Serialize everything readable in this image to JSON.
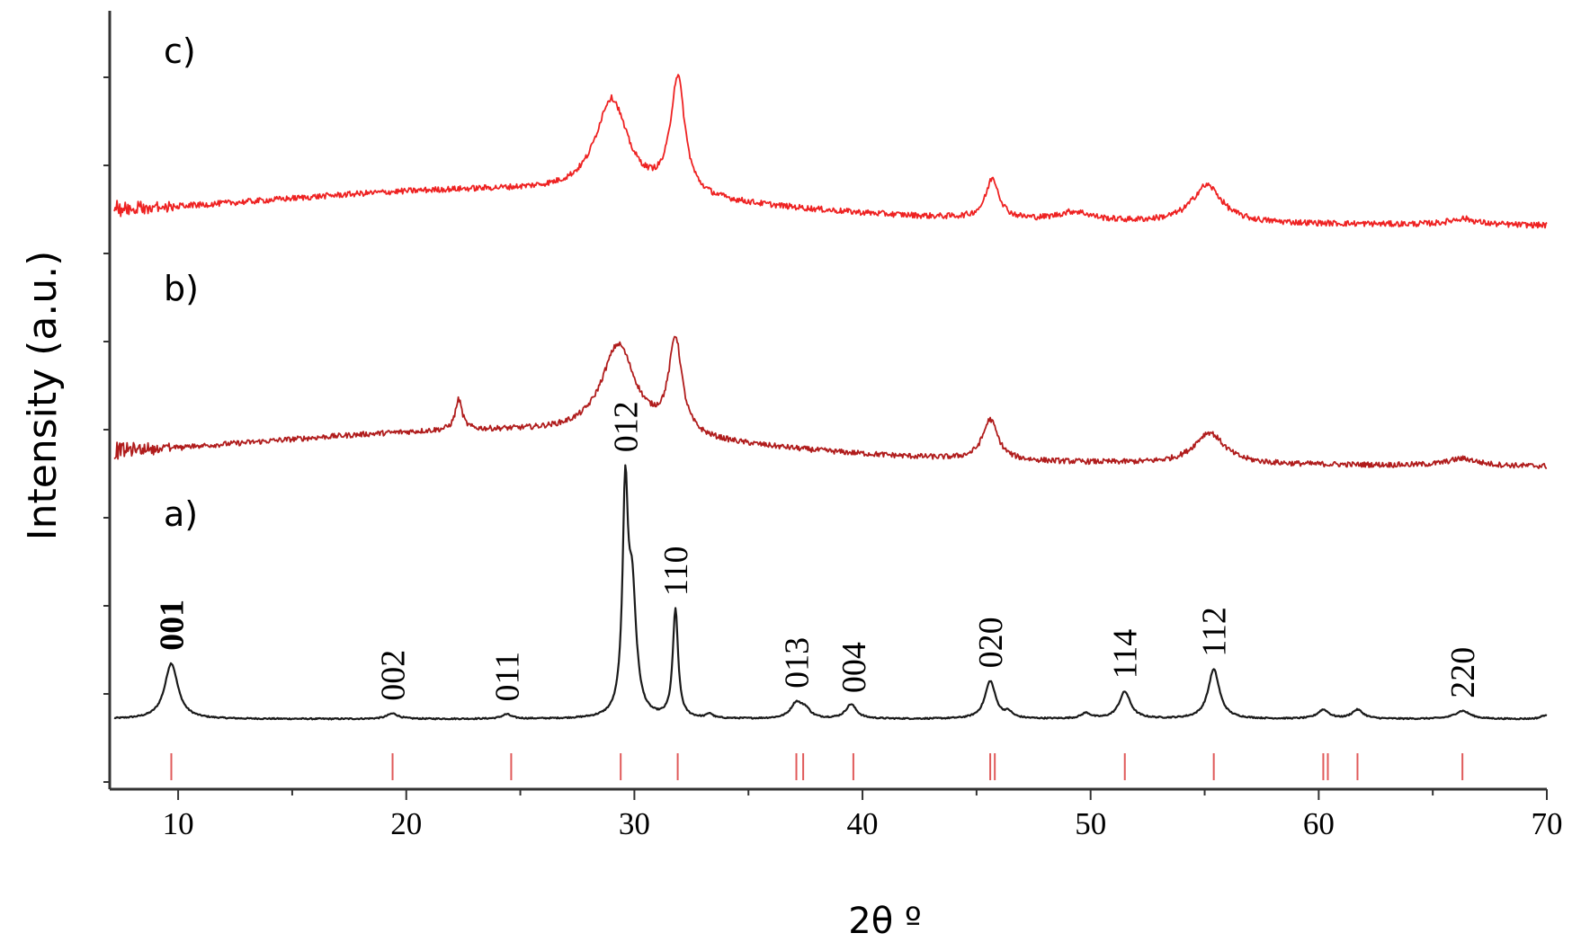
{
  "chart_data": {
    "type": "line",
    "title": "",
    "xlabel": "2θ º",
    "ylabel": "Intensity (a.u.)",
    "xlim": [
      7,
      70
    ],
    "x_ticks": [
      "10",
      "20",
      "30",
      "40",
      "50",
      "60",
      "70"
    ],
    "y_ticks_shown": false,
    "grid": false,
    "colors": {
      "a": "#1a1a1a",
      "b": "#b01c1c",
      "c": "#ee2222",
      "reference": "#e05a5a",
      "axis": "#333333"
    },
    "series": [
      {
        "label": "a)",
        "baseline": 0,
        "peaks": [
          {
            "x": 9.7,
            "h": 0.62,
            "w": 0.35
          },
          {
            "x": 19.4,
            "h": 0.06,
            "w": 0.3
          },
          {
            "x": 24.4,
            "h": 0.05,
            "w": 0.25
          },
          {
            "x": 29.6,
            "h": 2.35,
            "w": 0.14
          },
          {
            "x": 29.9,
            "h": 1.35,
            "w": 0.22
          },
          {
            "x": 31.8,
            "h": 1.2,
            "w": 0.14
          },
          {
            "x": 33.3,
            "h": 0.05,
            "w": 0.15
          },
          {
            "x": 37.1,
            "h": 0.17,
            "w": 0.3
          },
          {
            "x": 37.5,
            "h": 0.09,
            "w": 0.25
          },
          {
            "x": 39.5,
            "h": 0.16,
            "w": 0.28
          },
          {
            "x": 45.6,
            "h": 0.42,
            "w": 0.28
          },
          {
            "x": 46.4,
            "h": 0.06,
            "w": 0.2
          },
          {
            "x": 49.8,
            "h": 0.06,
            "w": 0.25
          },
          {
            "x": 51.5,
            "h": 0.3,
            "w": 0.3
          },
          {
            "x": 55.4,
            "h": 0.55,
            "w": 0.3
          },
          {
            "x": 60.2,
            "h": 0.1,
            "w": 0.3
          },
          {
            "x": 61.7,
            "h": 0.1,
            "w": 0.3
          },
          {
            "x": 66.3,
            "h": 0.09,
            "w": 0.4
          },
          {
            "x": 69.9,
            "h": 0.04,
            "w": 0.2
          }
        ]
      },
      {
        "label": "b)",
        "baseline": 3.03,
        "peaks": [
          {
            "x": 22.3,
            "h": 0.34,
            "w": 0.18
          },
          {
            "x": 29.3,
            "h": 1.0,
            "w": 0.9
          },
          {
            "x": 31.8,
            "h": 1.05,
            "w": 0.35
          },
          {
            "x": 45.6,
            "h": 0.45,
            "w": 0.4
          },
          {
            "x": 55.2,
            "h": 0.35,
            "w": 0.8
          },
          {
            "x": 66.3,
            "h": 0.08,
            "w": 0.8
          }
        ]
      },
      {
        "label": "c)",
        "baseline": 5.67,
        "peaks": [
          {
            "x": 29.0,
            "h": 1.05,
            "w": 0.85
          },
          {
            "x": 31.9,
            "h": 1.3,
            "w": 0.38
          },
          {
            "x": 45.7,
            "h": 0.45,
            "w": 0.35
          },
          {
            "x": 49.3,
            "h": 0.1,
            "w": 0.9
          },
          {
            "x": 55.1,
            "h": 0.42,
            "w": 0.8
          },
          {
            "x": 66.3,
            "h": 0.07,
            "w": 0.7
          }
        ]
      }
    ],
    "reference_lines": [
      9.7,
      19.4,
      24.6,
      29.4,
      31.9,
      37.1,
      37.4,
      39.6,
      45.6,
      45.8,
      51.5,
      55.4,
      60.2,
      60.4,
      61.7,
      66.3
    ],
    "peak_labels": [
      {
        "text": "001",
        "x": 9.7,
        "bold": true
      },
      {
        "text": "002",
        "x": 19.4
      },
      {
        "text": "011",
        "x": 24.4
      },
      {
        "text": "012",
        "x": 29.6
      },
      {
        "text": "110",
        "x": 31.8
      },
      {
        "text": "013",
        "x": 37.1
      },
      {
        "text": "004",
        "x": 39.6
      },
      {
        "text": "020",
        "x": 45.6
      },
      {
        "text": "114",
        "x": 51.5
      },
      {
        "text": "112",
        "x": 55.4
      },
      {
        "text": "220",
        "x": 66.3
      }
    ]
  }
}
